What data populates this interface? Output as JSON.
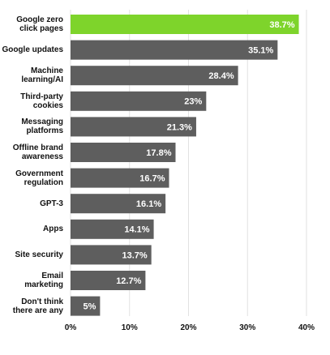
{
  "chart_data": {
    "type": "bar",
    "orientation": "horizontal",
    "categories": [
      "Google zero click pages",
      "Google updates",
      "Machine learning/AI",
      "Third-party cookies",
      "Messaging platforms",
      "Offline brand awareness",
      "Government regulation",
      "GPT-3",
      "Apps",
      "Site security",
      "Email marketing",
      "Don't think there are any"
    ],
    "values": [
      38.7,
      35.1,
      28.4,
      23,
      21.3,
      17.8,
      16.7,
      16.1,
      14.1,
      13.7,
      12.7,
      5
    ],
    "value_labels": [
      "38.7%",
      "35.1%",
      "28.4%",
      "23%",
      "21.3%",
      "17.8%",
      "16.7%",
      "16.1%",
      "14.1%",
      "13.7%",
      "12.7%",
      "5%"
    ],
    "colors": [
      "#7ed42b",
      "#5e5e5e",
      "#5e5e5e",
      "#5e5e5e",
      "#5e5e5e",
      "#5e5e5e",
      "#5e5e5e",
      "#5e5e5e",
      "#5e5e5e",
      "#5e5e5e",
      "#5e5e5e",
      "#5e5e5e"
    ],
    "xlim": [
      0,
      40
    ],
    "xticks": [
      {
        "value": 0,
        "label": "0%"
      },
      {
        "value": 10,
        "label": "10%"
      },
      {
        "value": 20,
        "label": "20%"
      },
      {
        "value": 30,
        "label": "30%"
      },
      {
        "value": 40,
        "label": "40%"
      }
    ],
    "grid": true
  }
}
